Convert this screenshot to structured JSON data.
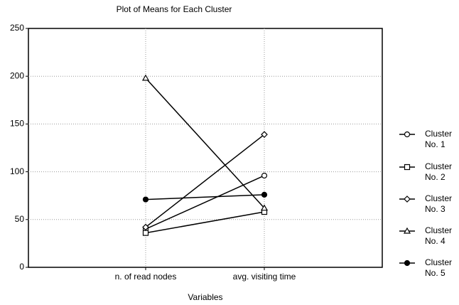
{
  "chart_data": {
    "type": "line",
    "title": "Plot of Means for Each Cluster",
    "x_label": "Variables",
    "categories": [
      "n. of read nodes",
      "avg. visiting time"
    ],
    "series": [
      {
        "name": "Cluster No. 1",
        "color": "#000000",
        "marker": "circle-open",
        "values": [
          40,
          96
        ]
      },
      {
        "name": "Cluster No. 2",
        "color": "#000000",
        "marker": "square-open",
        "values": [
          36,
          58
        ]
      },
      {
        "name": "Cluster No. 3",
        "color": "#000000",
        "marker": "diamond-open",
        "values": [
          42,
          139
        ]
      },
      {
        "name": "Cluster No. 4",
        "color": "#000000",
        "marker": "triangle-open",
        "values": [
          198,
          62
        ]
      },
      {
        "name": "Cluster No. 5",
        "color": "#000000",
        "marker": "circle-filled",
        "values": [
          71,
          76
        ]
      }
    ],
    "ylim": [
      0,
      250
    ],
    "yticks": [
      0,
      50,
      100,
      150,
      200,
      250
    ],
    "grid": true,
    "legend": "right"
  }
}
